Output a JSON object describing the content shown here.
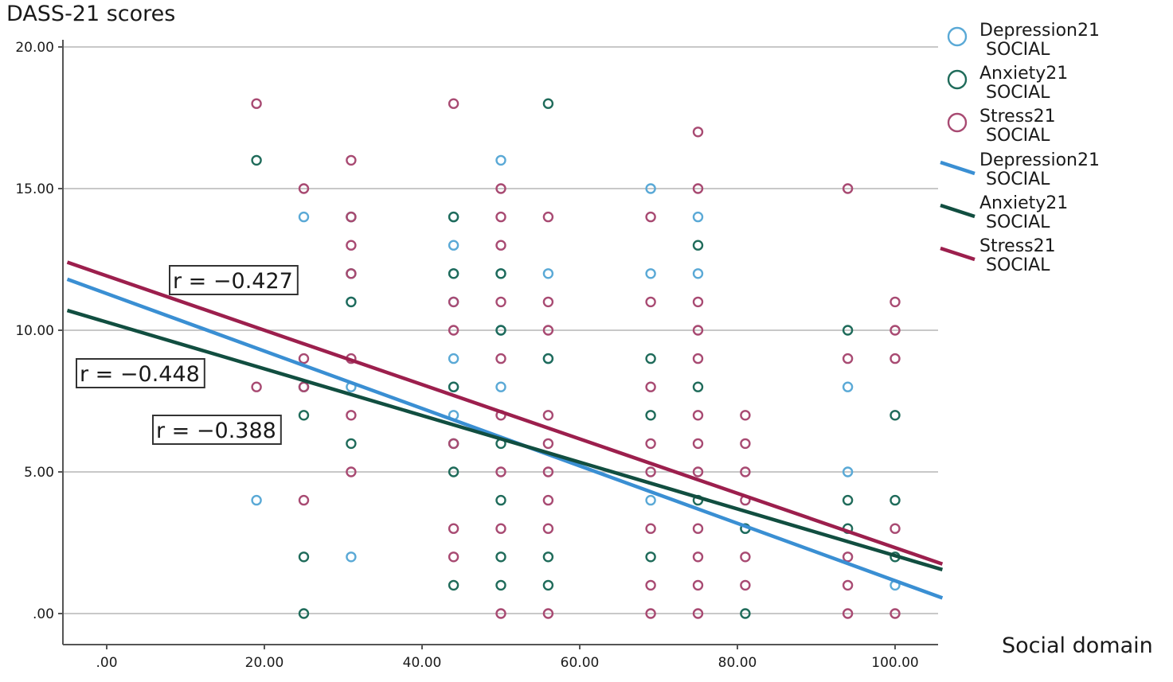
{
  "chart_data": {
    "type": "scatter",
    "ylabel": "DASS-21 scores",
    "xlabel": "Social domain",
    "xlim": [
      -5,
      106
    ],
    "ylim": [
      -1,
      20.5
    ],
    "x_ticks": [
      0,
      20,
      40,
      60,
      80,
      100
    ],
    "x_tick_labels": [
      ".00",
      "20.00",
      "40.00",
      "60.00",
      "80.00",
      "100.00"
    ],
    "y_ticks": [
      0,
      5,
      10,
      15,
      20
    ],
    "y_tick_labels": [
      ".00",
      "5.00",
      "10.00",
      "15.00",
      "20.00"
    ],
    "grid": "horizontal",
    "legend_position": "right",
    "series": [
      {
        "key": "depression",
        "name": "Depression21 SOCIAL",
        "color": "#5aa9d6",
        "points": [
          [
            19,
            4
          ],
          [
            25,
            14
          ],
          [
            31,
            2
          ],
          [
            31,
            11
          ],
          [
            31,
            8
          ],
          [
            44,
            14
          ],
          [
            44,
            13
          ],
          [
            44,
            12
          ],
          [
            44,
            11
          ],
          [
            44,
            9
          ],
          [
            44,
            8
          ],
          [
            44,
            7
          ],
          [
            50,
            16
          ],
          [
            50,
            12
          ],
          [
            50,
            8
          ],
          [
            50,
            10
          ],
          [
            56,
            12
          ],
          [
            56,
            9
          ],
          [
            69,
            15
          ],
          [
            69,
            12
          ],
          [
            69,
            4
          ],
          [
            75,
            14
          ],
          [
            75,
            12
          ],
          [
            81,
            3
          ],
          [
            94,
            8
          ],
          [
            94,
            5
          ],
          [
            100,
            1
          ]
        ]
      },
      {
        "key": "anxiety",
        "name": "Anxiety21 SOCIAL",
        "color": "#1f6b5a",
        "points": [
          [
            19,
            16
          ],
          [
            25,
            8
          ],
          [
            25,
            7
          ],
          [
            25,
            2
          ],
          [
            25,
            0
          ],
          [
            31,
            14
          ],
          [
            31,
            12
          ],
          [
            31,
            6
          ],
          [
            31,
            11
          ],
          [
            44,
            14
          ],
          [
            44,
            12
          ],
          [
            44,
            8
          ],
          [
            44,
            6
          ],
          [
            44,
            5
          ],
          [
            44,
            1
          ],
          [
            50,
            12
          ],
          [
            50,
            10
          ],
          [
            50,
            6
          ],
          [
            50,
            4
          ],
          [
            50,
            2
          ],
          [
            50,
            1
          ],
          [
            56,
            18
          ],
          [
            56,
            9
          ],
          [
            56,
            2
          ],
          [
            56,
            1
          ],
          [
            69,
            9
          ],
          [
            69,
            7
          ],
          [
            69,
            2
          ],
          [
            75,
            13
          ],
          [
            75,
            8
          ],
          [
            75,
            4
          ],
          [
            81,
            3
          ],
          [
            81,
            0
          ],
          [
            94,
            10
          ],
          [
            94,
            4
          ],
          [
            94,
            3
          ],
          [
            100,
            7
          ],
          [
            100,
            4
          ],
          [
            100,
            2
          ]
        ]
      },
      {
        "key": "stress",
        "name": "Stress21 SOCIAL",
        "color": "#a84a72",
        "points": [
          [
            19,
            18
          ],
          [
            19,
            8
          ],
          [
            25,
            15
          ],
          [
            25,
            9
          ],
          [
            25,
            8
          ],
          [
            25,
            4
          ],
          [
            31,
            16
          ],
          [
            31,
            14
          ],
          [
            31,
            13
          ],
          [
            31,
            12
          ],
          [
            31,
            9
          ],
          [
            31,
            7
          ],
          [
            31,
            5
          ],
          [
            44,
            18
          ],
          [
            44,
            11
          ],
          [
            44,
            10
          ],
          [
            44,
            6
          ],
          [
            44,
            3
          ],
          [
            44,
            2
          ],
          [
            50,
            15
          ],
          [
            50,
            14
          ],
          [
            50,
            13
          ],
          [
            50,
            11
          ],
          [
            50,
            9
          ],
          [
            50,
            7
          ],
          [
            50,
            5
          ],
          [
            50,
            3
          ],
          [
            50,
            0
          ],
          [
            56,
            14
          ],
          [
            56,
            11
          ],
          [
            56,
            10
          ],
          [
            56,
            7
          ],
          [
            56,
            6
          ],
          [
            56,
            5
          ],
          [
            56,
            4
          ],
          [
            56,
            3
          ],
          [
            56,
            0
          ],
          [
            69,
            14
          ],
          [
            69,
            11
          ],
          [
            69,
            8
          ],
          [
            69,
            6
          ],
          [
            69,
            5
          ],
          [
            69,
            3
          ],
          [
            69,
            1
          ],
          [
            69,
            0
          ],
          [
            75,
            17
          ],
          [
            75,
            15
          ],
          [
            75,
            11
          ],
          [
            75,
            10
          ],
          [
            75,
            9
          ],
          [
            75,
            7
          ],
          [
            75,
            6
          ],
          [
            75,
            5
          ],
          [
            75,
            3
          ],
          [
            75,
            2
          ],
          [
            75,
            1
          ],
          [
            75,
            0
          ],
          [
            81,
            7
          ],
          [
            81,
            6
          ],
          [
            81,
            5
          ],
          [
            81,
            4
          ],
          [
            81,
            2
          ],
          [
            81,
            1
          ],
          [
            94,
            15
          ],
          [
            94,
            9
          ],
          [
            94,
            2
          ],
          [
            94,
            1
          ],
          [
            94,
            0
          ],
          [
            100,
            11
          ],
          [
            100,
            10
          ],
          [
            100,
            9
          ],
          [
            100,
            3
          ],
          [
            100,
            0
          ]
        ]
      }
    ],
    "fit_lines": [
      {
        "key": "depression",
        "name": "Depression21 SOCIAL",
        "color": "#3a8fd3",
        "x": [
          -5,
          106
        ],
        "y": [
          11.8,
          0.55
        ]
      },
      {
        "key": "anxiety",
        "name": "Anxiety21 SOCIAL",
        "color": "#114e40",
        "x": [
          -5,
          106
        ],
        "y": [
          10.7,
          1.55
        ]
      },
      {
        "key": "stress",
        "name": "Stress21 SOCIAL",
        "color": "#9c1f4d",
        "x": [
          -5,
          106
        ],
        "y": [
          12.4,
          1.75
        ]
      }
    ],
    "annotations": [
      {
        "key": "stress",
        "text": "r = −0.427",
        "color": "#b01e4c"
      },
      {
        "key": "depression",
        "text": "r = −0.448",
        "color": "#3f86cc"
      },
      {
        "key": "anxiety",
        "text": "r = −0.388",
        "color": "#2e9b85"
      }
    ]
  },
  "legend": {
    "markers": [
      {
        "line1": "Depression21",
        "line2": "SOCIAL",
        "color": "#5aa9d6"
      },
      {
        "line1": "Anxiety21",
        "line2": "SOCIAL",
        "color": "#1f6b5a"
      },
      {
        "line1": "Stress21",
        "line2": "SOCIAL",
        "color": "#a84a72"
      }
    ],
    "lines": [
      {
        "line1": "Depression21",
        "line2": "SOCIAL",
        "color": "#3a8fd3"
      },
      {
        "line1": "Anxiety21",
        "line2": "SOCIAL",
        "color": "#114e40"
      },
      {
        "line1": "Stress21",
        "line2": "SOCIAL",
        "color": "#9c1f4d"
      }
    ]
  }
}
